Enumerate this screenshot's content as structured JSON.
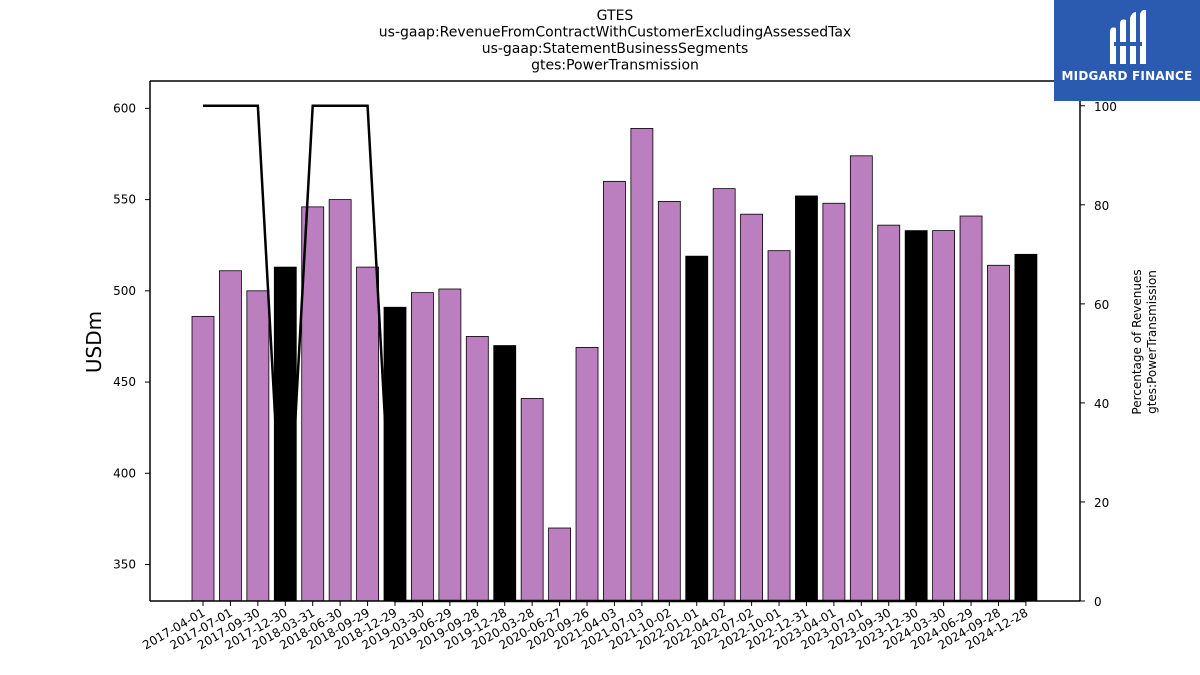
{
  "chart_data": {
    "type": "bar",
    "title_lines": [
      "GTES",
      "us-gaap:RevenueFromContractWithCustomerExcludingAssessedTax",
      "us-gaap:StatementBusinessSegments",
      "gtes:PowerTransmission"
    ],
    "ylabel": "USDm",
    "ylabel_right": [
      "Percentage of Revenues",
      "gtes:PowerTransmission"
    ],
    "ylim": [
      330,
      615
    ],
    "ylim_right": [
      0,
      105
    ],
    "yticks": [
      350,
      400,
      450,
      500,
      550,
      600
    ],
    "yticks_right": [
      0,
      20,
      40,
      60,
      80,
      100
    ],
    "categories": [
      "2017-04-01",
      "2017-07-01",
      "2017-09-30",
      "2017-12-30",
      "2018-03-31",
      "2018-06-30",
      "2018-09-29",
      "2018-12-29",
      "2019-03-30",
      "2019-06-29",
      "2019-09-28",
      "2019-12-28",
      "2020-03-28",
      "2020-06-27",
      "2020-09-26",
      "2021-04-03",
      "2021-07-03",
      "2021-10-02",
      "2022-01-01",
      "2022-04-02",
      "2022-07-02",
      "2022-10-01",
      "2022-12-31",
      "2023-04-01",
      "2023-07-01",
      "2023-09-30",
      "2023-12-30",
      "2024-03-30",
      "2024-06-29",
      "2024-09-28",
      "2024-12-28"
    ],
    "series": [
      {
        "values": [
          486,
          511,
          500,
          513,
          546,
          550,
          513,
          491,
          499,
          501,
          475,
          470,
          441,
          370,
          469,
          560,
          589,
          549,
          519,
          556,
          542,
          522,
          552,
          548,
          574,
          536,
          533,
          533,
          541,
          514,
          520
        ],
        "highlight": [
          false,
          false,
          false,
          true,
          false,
          false,
          false,
          true,
          false,
          false,
          false,
          true,
          false,
          false,
          false,
          false,
          false,
          false,
          true,
          false,
          false,
          false,
          true,
          false,
          false,
          false,
          true,
          false,
          false,
          false,
          true
        ]
      },
      {
        "type": "line",
        "axis": "right",
        "values": [
          100,
          100,
          100,
          0,
          100,
          100,
          100,
          0,
          0,
          0,
          0,
          0,
          0,
          0,
          0,
          0,
          0,
          0,
          0,
          0,
          0,
          0,
          0,
          0,
          0,
          0,
          0,
          0,
          0,
          0,
          0
        ]
      }
    ],
    "colors": {
      "bar": "#bb7fbf",
      "bar_highlight": "#000000",
      "line": "#000000"
    },
    "grid": false
  },
  "logo": {
    "text": "MIDGARD FINANCE",
    "background": "#2b5bb0"
  }
}
